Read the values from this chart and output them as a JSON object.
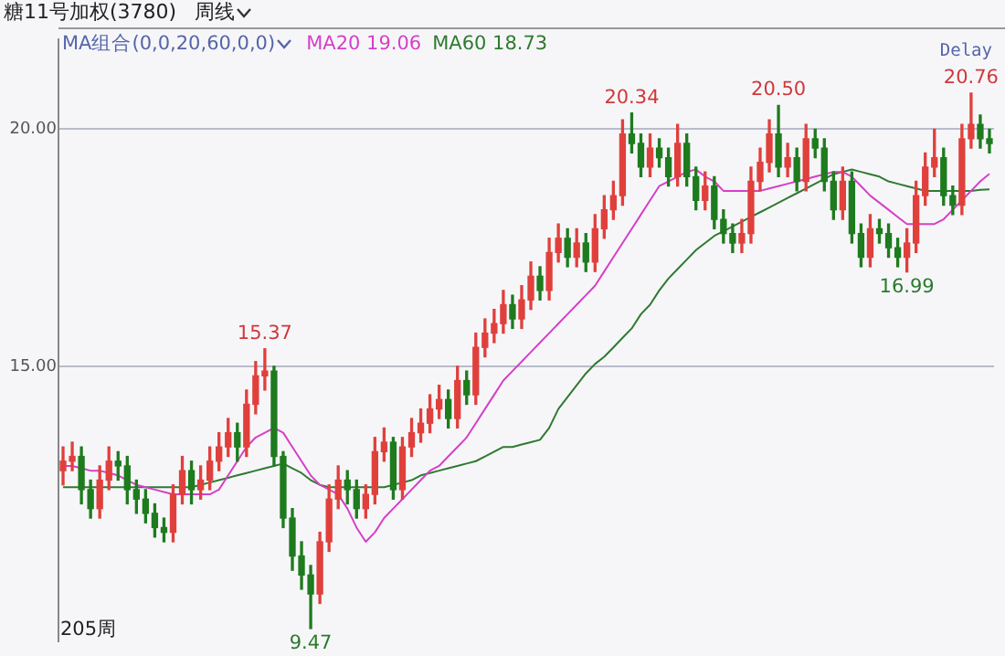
{
  "chart_data": {
    "type": "candlestick",
    "title": "糖11号加权(3780)",
    "subtitle": "周线",
    "legend_title": "MA组合(0,0,20,60,0,0)",
    "legend": "top left",
    "grid": "y",
    "tick_labels": "y",
    "categories": [
      null,
      null,
      null,
      null,
      null,
      null,
      null,
      null,
      null,
      null,
      null,
      null,
      null,
      null,
      null,
      null,
      null,
      null,
      null,
      null,
      null,
      null,
      null,
      null,
      null,
      null,
      null,
      null,
      null,
      null,
      null,
      null,
      null,
      null,
      null,
      null,
      null,
      null,
      null,
      null,
      null,
      null,
      null,
      null,
      null,
      null,
      null,
      null,
      null,
      null,
      null,
      null,
      null,
      null,
      null,
      null,
      null,
      null,
      null,
      null,
      null,
      null,
      null,
      null,
      null,
      null,
      null,
      null,
      null,
      null,
      null,
      null,
      null,
      null,
      null,
      null,
      null,
      null,
      null,
      null,
      null,
      null,
      null,
      null,
      null,
      null,
      null,
      null,
      null,
      null,
      null,
      null,
      null,
      null,
      null,
      null,
      null,
      null,
      null,
      null,
      null,
      null
    ],
    "ohlc": [
      [
        12.8,
        13.3,
        12.5,
        13.0
      ],
      [
        13.0,
        13.4,
        12.8,
        13.1
      ],
      [
        13.1,
        13.3,
        12.1,
        12.4
      ],
      [
        12.4,
        12.6,
        11.8,
        12.0
      ],
      [
        12.0,
        12.9,
        11.8,
        12.6
      ],
      [
        12.6,
        13.3,
        12.4,
        13.0
      ],
      [
        13.0,
        13.2,
        12.6,
        12.9
      ],
      [
        12.9,
        13.1,
        12.1,
        12.4
      ],
      [
        12.4,
        12.6,
        11.9,
        12.2
      ],
      [
        12.2,
        12.4,
        11.7,
        11.9
      ],
      [
        11.9,
        12.1,
        11.4,
        11.6
      ],
      [
        11.6,
        11.8,
        11.3,
        11.5
      ],
      [
        11.5,
        12.5,
        11.3,
        12.3
      ],
      [
        12.3,
        13.1,
        12.1,
        12.8
      ],
      [
        12.8,
        13.0,
        12.1,
        12.4
      ],
      [
        12.4,
        12.9,
        12.2,
        12.6
      ],
      [
        12.6,
        13.3,
        12.4,
        13.0
      ],
      [
        13.0,
        13.6,
        12.8,
        13.3
      ],
      [
        13.3,
        13.9,
        13.1,
        13.6
      ],
      [
        13.6,
        13.8,
        13.0,
        13.3
      ],
      [
        13.3,
        14.5,
        13.1,
        14.2
      ],
      [
        14.2,
        15.1,
        14.0,
        14.8
      ],
      [
        14.8,
        15.37,
        14.5,
        14.9
      ],
      [
        14.9,
        15.0,
        12.9,
        13.1
      ],
      [
        13.1,
        13.2,
        11.6,
        11.8
      ],
      [
        11.8,
        12.0,
        10.7,
        11.0
      ],
      [
        11.0,
        11.3,
        10.3,
        10.6
      ],
      [
        10.6,
        10.8,
        9.47,
        10.2
      ],
      [
        10.2,
        11.5,
        10.0,
        11.3
      ],
      [
        11.3,
        12.5,
        11.1,
        12.2
      ],
      [
        12.2,
        12.9,
        12.0,
        12.6
      ],
      [
        12.6,
        12.8,
        12.1,
        12.4
      ],
      [
        12.4,
        12.6,
        11.8,
        12.0
      ],
      [
        12.0,
        12.5,
        11.8,
        12.3
      ],
      [
        12.3,
        13.5,
        12.1,
        13.2
      ],
      [
        13.2,
        13.7,
        13.0,
        13.4
      ],
      [
        13.4,
        13.5,
        12.2,
        12.4
      ],
      [
        12.4,
        13.5,
        12.2,
        13.3
      ],
      [
        13.3,
        13.9,
        13.1,
        13.6
      ],
      [
        13.6,
        14.1,
        13.4,
        13.8
      ],
      [
        13.8,
        14.4,
        13.6,
        14.1
      ],
      [
        14.1,
        14.6,
        13.9,
        14.3
      ],
      [
        14.3,
        14.5,
        13.7,
        13.9
      ],
      [
        13.9,
        15.0,
        13.7,
        14.7
      ],
      [
        14.7,
        14.9,
        14.2,
        14.4
      ],
      [
        14.4,
        15.7,
        14.2,
        15.4
      ],
      [
        15.4,
        16.0,
        15.2,
        15.7
      ],
      [
        15.7,
        16.2,
        15.5,
        15.9
      ],
      [
        15.9,
        16.6,
        15.7,
        16.3
      ],
      [
        16.3,
        16.5,
        15.8,
        16.0
      ],
      [
        16.0,
        16.7,
        15.8,
        16.4
      ],
      [
        16.4,
        17.2,
        16.2,
        16.9
      ],
      [
        16.9,
        17.1,
        16.4,
        16.6
      ],
      [
        16.6,
        17.7,
        16.4,
        17.4
      ],
      [
        17.4,
        18.0,
        17.2,
        17.7
      ],
      [
        17.7,
        17.9,
        17.1,
        17.3
      ],
      [
        17.3,
        17.9,
        17.1,
        17.6
      ],
      [
        17.6,
        17.8,
        17.0,
        17.2
      ],
      [
        17.2,
        18.2,
        17.0,
        17.9
      ],
      [
        17.9,
        18.6,
        17.7,
        18.3
      ],
      [
        18.3,
        18.9,
        18.1,
        18.6
      ],
      [
        18.6,
        20.2,
        18.4,
        19.9
      ],
      [
        19.9,
        20.34,
        19.5,
        19.7
      ],
      [
        19.7,
        19.9,
        19.0,
        19.2
      ],
      [
        19.2,
        19.9,
        19.0,
        19.6
      ],
      [
        19.6,
        19.8,
        19.2,
        19.4
      ],
      [
        19.4,
        19.6,
        18.8,
        19.0
      ],
      [
        19.0,
        20.1,
        18.8,
        19.7
      ],
      [
        19.7,
        19.9,
        18.8,
        19.0
      ],
      [
        19.0,
        19.2,
        18.3,
        18.5
      ],
      [
        18.5,
        19.1,
        18.3,
        18.8
      ],
      [
        18.8,
        19.0,
        17.9,
        18.1
      ],
      [
        18.1,
        18.3,
        17.6,
        17.8
      ],
      [
        17.8,
        18.0,
        17.4,
        17.6
      ],
      [
        17.6,
        18.1,
        17.4,
        17.8
      ],
      [
        17.8,
        19.2,
        17.6,
        18.9
      ],
      [
        18.9,
        19.6,
        18.7,
        19.3
      ],
      [
        19.3,
        20.2,
        19.1,
        19.9
      ],
      [
        19.9,
        20.5,
        19.0,
        19.2
      ],
      [
        19.2,
        19.7,
        19.0,
        19.4
      ],
      [
        19.4,
        19.6,
        18.7,
        18.9
      ],
      [
        18.9,
        20.1,
        18.7,
        19.8
      ],
      [
        19.8,
        20.0,
        19.4,
        19.6
      ],
      [
        19.6,
        19.8,
        18.7,
        18.9
      ],
      [
        18.9,
        19.1,
        18.1,
        18.3
      ],
      [
        18.3,
        19.2,
        18.1,
        18.9
      ],
      [
        18.9,
        19.1,
        17.6,
        17.8
      ],
      [
        17.8,
        18.0,
        17.1,
        17.3
      ],
      [
        17.3,
        18.2,
        17.1,
        17.9
      ],
      [
        17.9,
        18.1,
        17.6,
        17.8
      ],
      [
        17.8,
        18.0,
        17.3,
        17.5
      ],
      [
        17.5,
        17.7,
        17.1,
        17.3
      ],
      [
        17.3,
        17.9,
        16.99,
        17.6
      ],
      [
        17.6,
        18.9,
        17.4,
        18.6
      ],
      [
        18.6,
        19.5,
        18.4,
        19.2
      ],
      [
        19.2,
        20.0,
        19.0,
        19.4
      ],
      [
        19.4,
        19.6,
        18.4,
        18.6
      ],
      [
        18.6,
        18.8,
        18.2,
        18.4
      ],
      [
        18.4,
        20.1,
        18.2,
        19.8
      ],
      [
        19.8,
        20.76,
        19.6,
        20.1
      ],
      [
        20.1,
        20.3,
        19.6,
        19.8
      ],
      [
        19.8,
        20.0,
        19.5,
        19.7
      ]
    ],
    "colors": [
      "#e0403c",
      "#e0403c",
      "#1e7b1e",
      "#1e7b1e",
      "#e0403c",
      "#e0403c",
      "#1e7b1e",
      "#1e7b1e",
      "#1e7b1e",
      "#1e7b1e",
      "#1e7b1e",
      "#1e7b1e",
      "#e0403c",
      "#e0403c",
      "#1e7b1e",
      "#e0403c",
      "#e0403c",
      "#e0403c",
      "#e0403c",
      "#1e7b1e",
      "#e0403c",
      "#e0403c",
      "#e0403c",
      "#1e7b1e",
      "#1e7b1e",
      "#1e7b1e",
      "#1e7b1e",
      "#1e7b1e",
      "#e0403c",
      "#e0403c",
      "#e0403c",
      "#1e7b1e",
      "#1e7b1e",
      "#e0403c",
      "#e0403c",
      "#e0403c",
      "#1e7b1e",
      "#e0403c",
      "#e0403c",
      "#e0403c",
      "#e0403c",
      "#e0403c",
      "#1e7b1e",
      "#e0403c",
      "#1e7b1e",
      "#e0403c",
      "#e0403c",
      "#e0403c",
      "#e0403c",
      "#1e7b1e",
      "#e0403c",
      "#e0403c",
      "#1e7b1e",
      "#e0403c",
      "#e0403c",
      "#1e7b1e",
      "#e0403c",
      "#1e7b1e",
      "#e0403c",
      "#e0403c",
      "#e0403c",
      "#e0403c",
      "#1e7b1e",
      "#1e7b1e",
      "#e0403c",
      "#1e7b1e",
      "#1e7b1e",
      "#e0403c",
      "#1e7b1e",
      "#1e7b1e",
      "#e0403c",
      "#1e7b1e",
      "#1e7b1e",
      "#1e7b1e",
      "#e0403c",
      "#e0403c",
      "#e0403c",
      "#e0403c",
      "#1e7b1e",
      "#e0403c",
      "#1e7b1e",
      "#e0403c",
      "#1e7b1e",
      "#1e7b1e",
      "#1e7b1e",
      "#e0403c",
      "#1e7b1e",
      "#1e7b1e",
      "#e0403c",
      "#1e7b1e",
      "#1e7b1e",
      "#1e7b1e",
      "#e0403c",
      "#e0403c",
      "#e0403c",
      "#e0403c",
      "#1e7b1e",
      "#1e7b1e",
      "#e0403c",
      "#e0403c",
      "#1e7b1e",
      "#1e7b1e"
    ],
    "series": [
      {
        "type": "line",
        "name": "MA20 19.06",
        "color": "#d63fc8",
        "values": [
          12.9,
          12.9,
          12.85,
          12.8,
          12.8,
          12.75,
          12.7,
          12.6,
          12.5,
          12.45,
          12.4,
          12.35,
          12.3,
          12.3,
          12.3,
          12.3,
          12.3,
          12.4,
          12.7,
          13.0,
          13.3,
          13.5,
          13.6,
          13.7,
          13.6,
          13.3,
          13.0,
          12.7,
          12.5,
          12.4,
          12.3,
          12.0,
          11.6,
          11.3,
          11.5,
          11.8,
          12.0,
          12.2,
          12.4,
          12.6,
          12.8,
          12.9,
          13.1,
          13.3,
          13.5,
          13.8,
          14.1,
          14.4,
          14.7,
          14.9,
          15.1,
          15.3,
          15.5,
          15.7,
          15.9,
          16.1,
          16.3,
          16.5,
          16.7,
          17.0,
          17.3,
          17.6,
          17.9,
          18.2,
          18.5,
          18.8,
          18.9,
          19.0,
          19.1,
          19.15,
          19.0,
          18.9,
          18.7,
          18.7,
          18.7,
          18.7,
          18.7,
          18.75,
          18.8,
          18.85,
          18.9,
          18.95,
          19.0,
          19.05,
          19.1,
          19.1,
          19.0,
          18.8,
          18.6,
          18.45,
          18.3,
          18.15,
          18.0,
          18.0,
          18.0,
          18.0,
          18.1,
          18.3,
          18.5,
          18.7,
          18.9,
          19.06
        ]
      },
      {
        "type": "line",
        "name": "MA60 18.73",
        "color": "#2f7a2f",
        "values": [
          12.45,
          12.45,
          12.45,
          12.45,
          12.45,
          12.45,
          12.45,
          12.45,
          12.45,
          12.45,
          12.45,
          12.45,
          12.45,
          12.45,
          12.45,
          12.5,
          12.55,
          12.6,
          12.65,
          12.7,
          12.75,
          12.8,
          12.85,
          12.9,
          12.95,
          12.85,
          12.75,
          12.6,
          12.5,
          12.45,
          12.45,
          12.45,
          12.45,
          12.45,
          12.45,
          12.45,
          12.5,
          12.55,
          12.6,
          12.7,
          12.75,
          12.8,
          12.85,
          12.9,
          12.95,
          13.0,
          13.1,
          13.2,
          13.3,
          13.3,
          13.35,
          13.4,
          13.45,
          13.7,
          14.1,
          14.35,
          14.6,
          14.85,
          15.05,
          15.2,
          15.4,
          15.6,
          15.8,
          16.1,
          16.3,
          16.6,
          16.85,
          17.05,
          17.25,
          17.45,
          17.6,
          17.75,
          17.85,
          17.95,
          18.05,
          18.15,
          18.25,
          18.35,
          18.45,
          18.55,
          18.65,
          18.75,
          18.85,
          18.95,
          19.05,
          19.1,
          19.15,
          19.1,
          19.05,
          19.0,
          18.9,
          18.85,
          18.8,
          18.75,
          18.7,
          18.7,
          18.7,
          18.7,
          18.7,
          18.7,
          18.72,
          18.73
        ]
      }
    ],
    "ylim": [
      9.2,
      21.9
    ],
    "yticks": [
      {
        "value": 15,
        "label": "15.00"
      },
      {
        "value": 20,
        "label": "20.00"
      }
    ],
    "annotations": [
      {
        "text": "15.37",
        "y": 15.37
      },
      {
        "text": "9.47",
        "y": 9.47
      },
      {
        "text": "20.34",
        "y": 20.34
      },
      {
        "text": "20.50",
        "y": 20.5
      },
      {
        "text": "16.99",
        "y": 16.99
      },
      {
        "text": "20.76",
        "y": 20.76
      },
      "Delay",
      "205周"
    ]
  }
}
